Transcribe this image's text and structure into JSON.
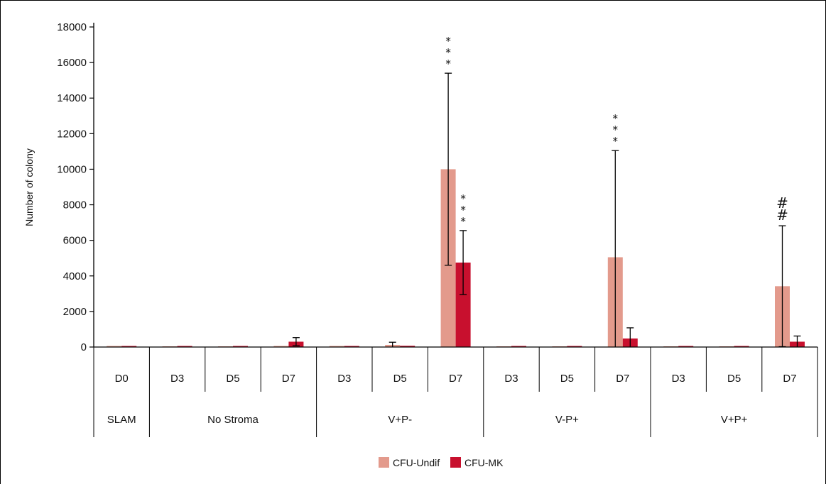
{
  "chart_data": {
    "type": "bar",
    "ylabel": "Number of colony",
    "ylim": [
      0,
      18000
    ],
    "yticks": [
      0,
      2000,
      4000,
      6000,
      8000,
      10000,
      12000,
      14000,
      16000,
      18000
    ],
    "grid": false,
    "legend_position": "bottom-center",
    "categories": [
      "D0",
      "D3",
      "D5",
      "D7",
      "D3",
      "D5",
      "D7",
      "D3",
      "D5",
      "D7",
      "D3",
      "D5",
      "D7"
    ],
    "groups": [
      {
        "label": "SLAM",
        "span": 1
      },
      {
        "label": "No Stroma",
        "span": 3
      },
      {
        "label": "V+P-",
        "span": 3
      },
      {
        "label": "V-P+",
        "span": 3
      },
      {
        "label": "V+P+",
        "span": 3
      }
    ],
    "series": [
      {
        "name": "CFU-Undif",
        "color": "#e39a8c",
        "values": [
          60,
          40,
          40,
          60,
          60,
          120,
          10000,
          40,
          40,
          5050,
          40,
          40,
          3420
        ],
        "error": [
          0,
          0,
          0,
          0,
          0,
          150,
          5400,
          0,
          0,
          6000,
          0,
          0,
          3400
        ]
      },
      {
        "name": "CFU-MK",
        "color": "#c8102e",
        "values": [
          60,
          60,
          60,
          300,
          60,
          70,
          4750,
          60,
          60,
          480,
          60,
          60,
          300
        ],
        "error": [
          0,
          0,
          0,
          230,
          0,
          0,
          1800,
          0,
          0,
          600,
          0,
          0,
          320
        ]
      }
    ],
    "annotations": [
      {
        "category_index": 6,
        "series": 0,
        "text": "* * *"
      },
      {
        "category_index": 6,
        "series": 1,
        "text": "* * *"
      },
      {
        "category_index": 9,
        "series": 0,
        "text": "* * *"
      },
      {
        "category_index": 12,
        "series": 0,
        "text": "# #"
      }
    ]
  }
}
